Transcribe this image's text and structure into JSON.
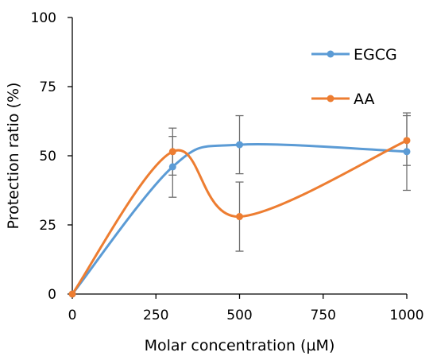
{
  "chart_data": {
    "type": "line",
    "title": "",
    "xlabel": "Molar concentration (µM)",
    "ylabel": "Protection ratio (%)",
    "xlim": [
      0,
      1000
    ],
    "ylim": [
      0,
      100
    ],
    "x_ticks": [
      "0",
      "250",
      "500",
      "750",
      "1000"
    ],
    "y_ticks": [
      "0",
      "25",
      "50",
      "75",
      "100"
    ],
    "x": [
      0,
      300,
      500,
      1000
    ],
    "smoothed": true,
    "grid": false,
    "legend_position": "top-right",
    "series": [
      {
        "name": "EGCG",
        "color": "#5b9bd5",
        "values": [
          0,
          46,
          54,
          51.5
        ],
        "error": [
          0,
          11,
          10.5,
          14
        ]
      },
      {
        "name": "AA",
        "color": "#ed7d31",
        "values": [
          0,
          51.5,
          28,
          55.5
        ],
        "error": [
          0,
          8.5,
          12.5,
          9
        ]
      }
    ]
  }
}
